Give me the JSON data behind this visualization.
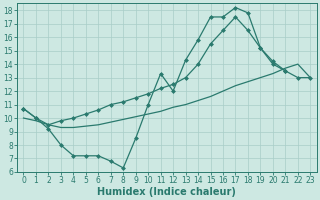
{
  "xlabel": "Humidex (Indice chaleur)",
  "xlim": [
    -0.5,
    23.5
  ],
  "ylim": [
    6,
    18.5
  ],
  "xticks": [
    0,
    1,
    2,
    3,
    4,
    5,
    6,
    7,
    8,
    9,
    10,
    11,
    12,
    13,
    14,
    15,
    16,
    17,
    18,
    19,
    20,
    21,
    22,
    23
  ],
  "yticks": [
    6,
    7,
    8,
    9,
    10,
    11,
    12,
    13,
    14,
    15,
    16,
    17,
    18
  ],
  "bg_color": "#cde8e2",
  "line_color": "#2a7a6e",
  "grid_color": "#a8cec8",
  "line1_x": [
    0,
    1,
    2,
    3,
    4,
    5,
    6,
    7,
    8,
    9,
    10,
    11,
    12,
    13,
    14,
    15,
    16,
    17,
    18,
    19,
    20,
    21
  ],
  "line1_y": [
    10.7,
    10.0,
    9.2,
    8.0,
    7.2,
    7.2,
    7.2,
    6.8,
    6.3,
    8.5,
    11.0,
    13.3,
    12.0,
    14.3,
    15.8,
    17.5,
    17.5,
    18.2,
    17.8,
    15.2,
    14.2,
    13.5
  ],
  "line2_x": [
    0,
    1,
    2,
    3,
    4,
    5,
    6,
    7,
    8,
    9,
    10,
    11,
    12,
    13,
    14,
    15,
    16,
    17,
    18,
    19,
    20,
    21,
    22,
    23
  ],
  "line2_y": [
    10.0,
    9.8,
    9.5,
    9.3,
    9.3,
    9.4,
    9.5,
    9.7,
    9.9,
    10.1,
    10.3,
    10.5,
    10.8,
    11.0,
    11.3,
    11.6,
    12.0,
    12.4,
    12.7,
    13.0,
    13.3,
    13.7,
    14.0,
    13.0
  ],
  "line3_x": [
    0,
    1,
    2,
    3,
    4,
    5,
    6,
    7,
    8,
    9,
    10,
    11,
    12,
    13,
    14,
    15,
    16,
    17,
    18,
    19,
    20,
    21,
    22,
    23
  ],
  "line3_y": [
    10.7,
    10.0,
    9.5,
    9.8,
    10.0,
    10.3,
    10.6,
    11.0,
    11.2,
    11.5,
    11.8,
    12.2,
    12.5,
    13.0,
    14.0,
    15.5,
    16.5,
    17.5,
    16.5,
    15.2,
    14.0,
    13.5,
    13.0,
    13.0
  ],
  "tick_fontsize": 5.5,
  "label_fontsize": 7
}
